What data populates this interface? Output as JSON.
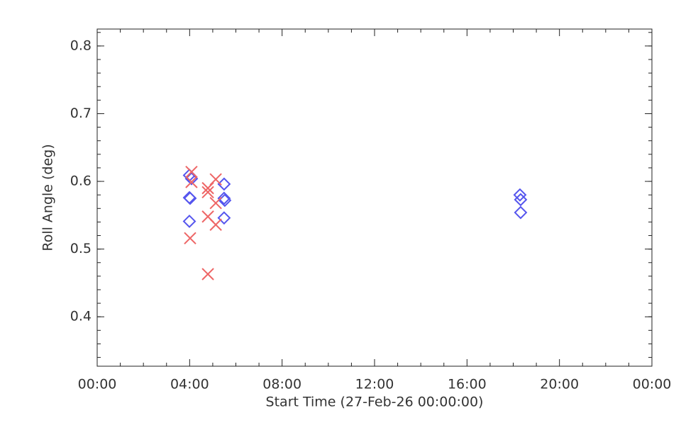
{
  "chart_data": {
    "type": "scatter",
    "xlabel": "Start Time (27-Feb-26 00:00:00)",
    "ylabel": "Roll Angle (deg)",
    "xlim": [
      0,
      24
    ],
    "xticks": [
      {
        "value": 0,
        "label": "00:00"
      },
      {
        "value": 4,
        "label": "04:00"
      },
      {
        "value": 8,
        "label": "08:00"
      },
      {
        "value": 12,
        "label": "12:00"
      },
      {
        "value": 16,
        "label": "16:00"
      },
      {
        "value": 20,
        "label": "20:00"
      },
      {
        "value": 24,
        "label": "00:00"
      }
    ],
    "ylim": [
      0.327,
      0.825
    ],
    "yticks": [
      0.4,
      0.5,
      0.6,
      0.7,
      0.8
    ],
    "x_minor": 4,
    "y_minor": 5,
    "series": [
      {
        "color": "#5555ee",
        "marker": "diamond",
        "x": [
          3.99,
          4.08,
          3.99,
          4.02,
          3.99,
          5.49,
          5.49,
          5.52,
          5.49,
          18.29,
          18.32,
          18.32
        ],
        "values": [
          0.609,
          0.604,
          0.576,
          0.575,
          0.541,
          0.596,
          0.575,
          0.572,
          0.546,
          0.58,
          0.573,
          0.554
        ]
      },
      {
        "color": "#ee6666",
        "marker": "x",
        "x": [
          4.08,
          4.08,
          4.02,
          4.79,
          4.79,
          4.79,
          4.79,
          5.13,
          5.13,
          5.13
        ],
        "values": [
          0.614,
          0.599,
          0.516,
          0.59,
          0.584,
          0.548,
          0.463,
          0.603,
          0.568,
          0.536
        ]
      }
    ]
  }
}
